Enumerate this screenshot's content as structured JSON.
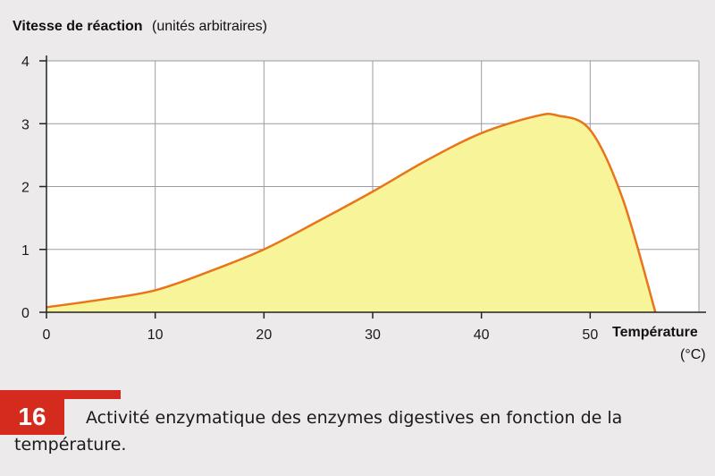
{
  "chart_data": {
    "type": "area",
    "ylabel_bold": "Vitesse de réaction",
    "ylabel_rest": "(unités arbitraires)",
    "xlabel_bold": "Température",
    "xlabel_unit": "(°C)",
    "x": [
      0,
      5,
      10,
      15,
      20,
      25,
      30,
      35,
      40,
      45,
      47,
      50,
      53,
      56
    ],
    "y": [
      0.08,
      0.2,
      0.35,
      0.65,
      1.0,
      1.45,
      1.92,
      2.42,
      2.85,
      3.12,
      3.13,
      2.9,
      1.8,
      0
    ],
    "xlim": [
      0,
      60
    ],
    "ylim": [
      0,
      4
    ],
    "xticks": [
      "0",
      "10",
      "20",
      "30",
      "40",
      "50"
    ],
    "yticks": [
      "0",
      "1",
      "2",
      "3",
      "4"
    ],
    "grid": true,
    "colors": {
      "line": "#e8751a",
      "fill": "#f8f49a",
      "plot_bg": "#ffffff",
      "caption_accent": "#d52b1e"
    }
  },
  "caption": {
    "number": "16",
    "text": "Activité enzymatique des enzymes digestives en fonction de la température."
  }
}
